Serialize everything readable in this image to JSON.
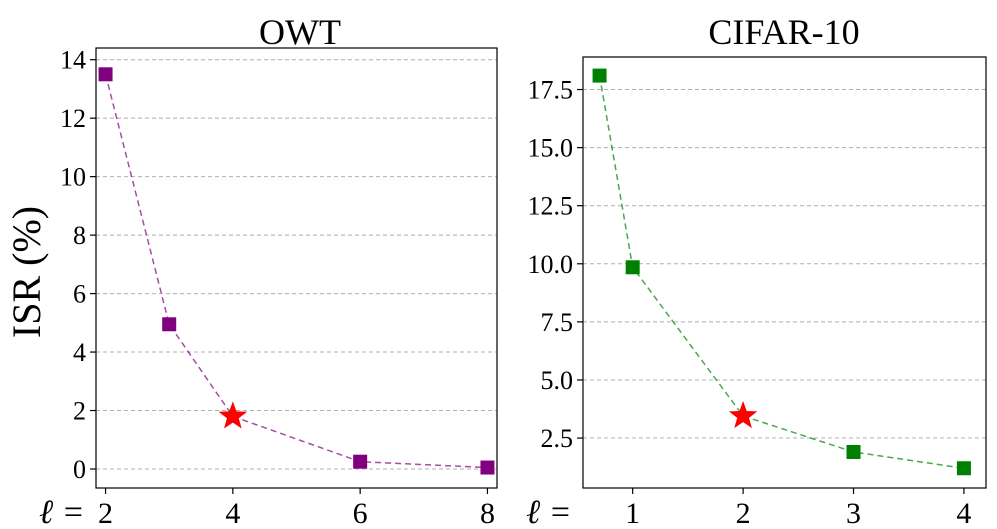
{
  "chart_data": [
    {
      "type": "line",
      "title": "OWT",
      "ylabel": "ISR (%)",
      "xlabel": "",
      "x_prefix": "ℓ =",
      "x_ticks": [
        2,
        4,
        6,
        8
      ],
      "y_ticks": [
        0,
        2,
        4,
        6,
        8,
        10,
        12,
        14
      ],
      "xlim": [
        1.85,
        8.15
      ],
      "ylim": [
        -0.65,
        14.4
      ],
      "grid": "y-dashed",
      "color": "#800080",
      "series": [
        {
          "x": [
            2,
            3,
            4,
            6,
            8
          ],
          "y": [
            13.5,
            4.95,
            1.8,
            0.25,
            0.05
          ]
        }
      ],
      "highlight": {
        "x": 4,
        "y": 1.8,
        "marker": "star",
        "color": "#ff0000"
      }
    },
    {
      "type": "line",
      "title": "CIFAR-10",
      "ylabel": "",
      "xlabel": "",
      "x_prefix": "ℓ =",
      "x_ticks": [
        1,
        2,
        3,
        4
      ],
      "y_ticks": [
        2.5,
        5.0,
        7.5,
        10.0,
        12.5,
        15.0,
        17.5
      ],
      "y_tick_labels": [
        "2.5",
        "5.0",
        "7.5",
        "10.0",
        "12.5",
        "15.0",
        "17.5"
      ],
      "xlim": [
        0.55,
        4.2
      ],
      "ylim": [
        0.35,
        18.9
      ],
      "grid": "y-dashed",
      "color": "#008000",
      "series": [
        {
          "x": [
            0.7,
            1,
            2,
            3,
            4
          ],
          "y": [
            18.1,
            9.85,
            3.45,
            1.9,
            1.2
          ]
        }
      ],
      "highlight": {
        "x": 2,
        "y": 3.45,
        "marker": "star",
        "color": "#ff0000"
      }
    }
  ]
}
